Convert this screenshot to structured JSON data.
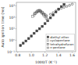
{
  "chart_data": {
    "type": "scatter",
    "xlabel": "1000/T (K⁻¹)",
    "ylabel": "Auto ignition time (ms)",
    "xlim": [
      0.78,
      1.65
    ],
    "ylim": [
      0.1,
      2000
    ],
    "xticks": [
      0.8,
      {
        "value": 1.0,
        "label": "1.0"
      },
      1.2,
      1.4,
      1.6
    ],
    "yticks": [
      {
        "value": 0.1,
        "label": "10⁻¹"
      },
      {
        "value": 1,
        "label": "10⁰"
      },
      {
        "value": 10,
        "label": "10¹"
      },
      {
        "value": 100,
        "label": "10²"
      },
      {
        "value": 1000,
        "label": "10³"
      }
    ],
    "log": "y",
    "grid": false,
    "legend": "lower right",
    "series": [
      {
        "name": "diethyl ether",
        "color": "#444444",
        "marker": "square",
        "x": [
          0.84,
          0.88,
          0.92,
          0.96,
          1.0,
          1.04,
          1.08,
          1.12,
          1.16,
          1.2,
          1.24,
          1.28,
          1.32,
          1.36,
          1.4,
          1.44,
          1.48
        ],
        "values": [
          0.35,
          0.55,
          0.85,
          1.4,
          2.3,
          4.0,
          6.5,
          10.0,
          16.0,
          28.0,
          50.0,
          90.0,
          160.0,
          290.0,
          520.0,
          850.0,
          1300.0
        ]
      },
      {
        "name": "cyclopentane",
        "color": "#888888",
        "marker": "open-square",
        "x": [
          1.02,
          1.04,
          1.06,
          1.08,
          1.1,
          1.12,
          1.14,
          1.16,
          1.18,
          1.2,
          1.22,
          1.24
        ],
        "values": [
          120,
          160,
          220,
          300,
          360,
          400,
          280,
          210,
          160,
          110,
          80,
          65
        ]
      },
      {
        "name": "tetrahydrofuran",
        "color": "#555555",
        "marker": "open-square",
        "x": [
          1.05,
          1.08,
          1.1,
          1.12,
          1.14,
          1.16,
          1.18,
          1.2,
          1.22
        ],
        "values": [
          220,
          280,
          340,
          380,
          330,
          260,
          200,
          160,
          130
        ]
      },
      {
        "name": "n-pentane",
        "color": "#444444",
        "marker": "open-circle",
        "x": [
          1.28,
          1.32,
          1.36,
          1.4,
          1.44,
          1.48,
          1.52,
          1.56,
          1.6
        ],
        "values": [
          180,
          250,
          360,
          480,
          620,
          750,
          900,
          1100,
          1400
        ]
      }
    ]
  }
}
